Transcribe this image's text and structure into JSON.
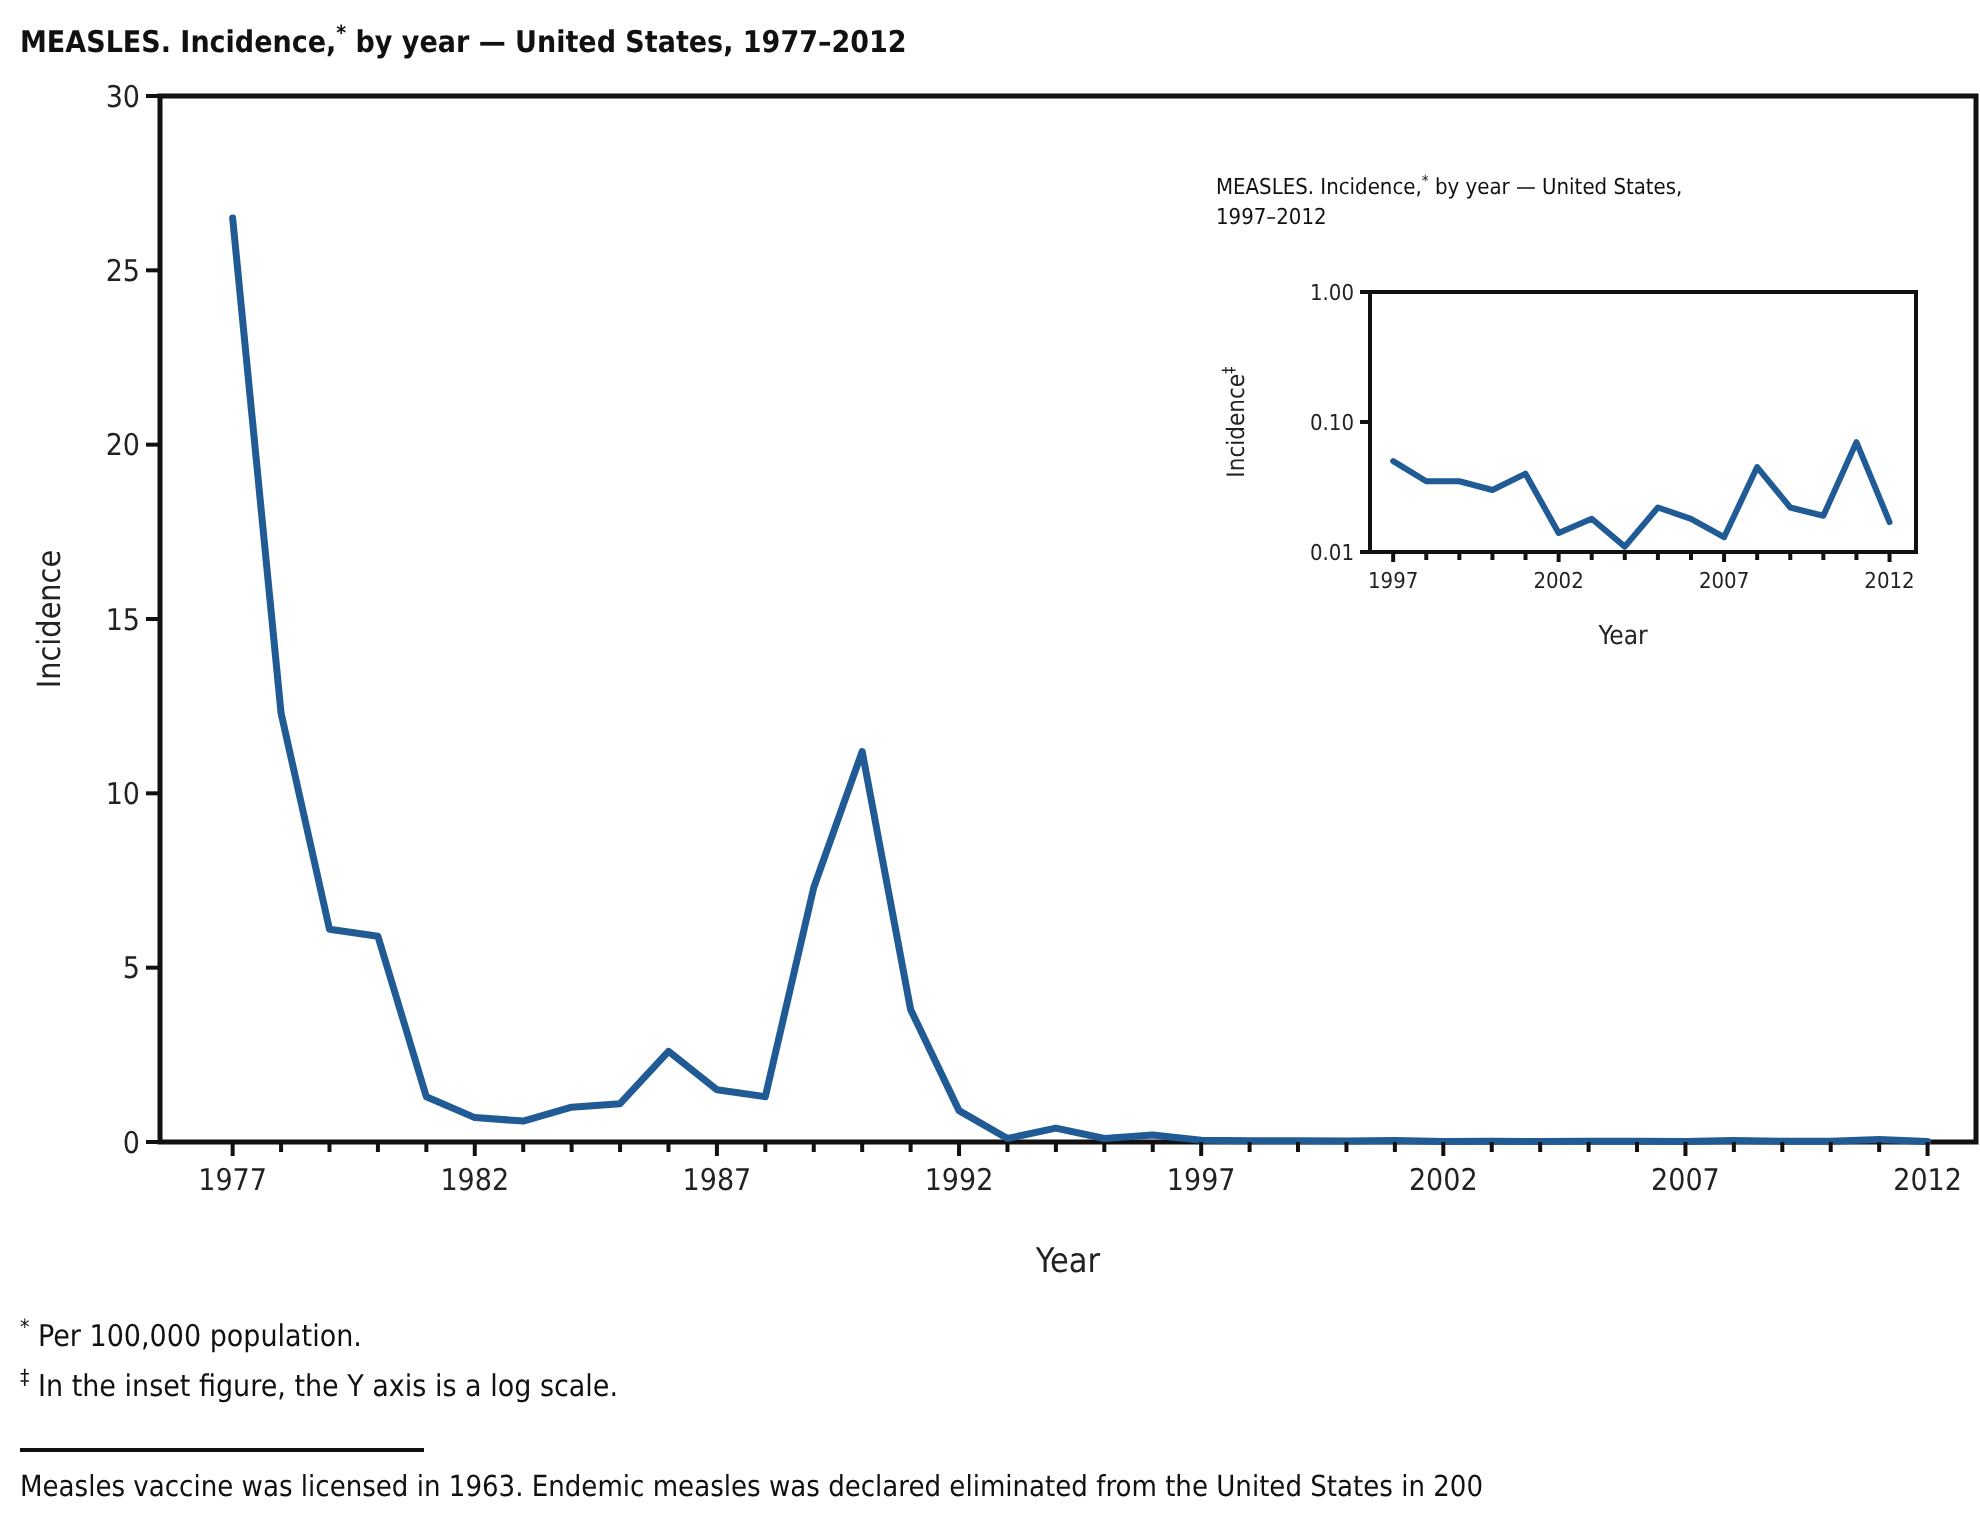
{
  "chart_data": [
    {
      "type": "line",
      "title": "MEASLES. Incidence,$^{*}$ by year — United States, 1977–2012",
      "xlabel": "Year",
      "ylabel": "Incidence",
      "x": [
        1977,
        1978,
        1979,
        1980,
        1981,
        1982,
        1983,
        1984,
        1985,
        1986,
        1987,
        1988,
        1989,
        1990,
        1991,
        1992,
        1993,
        1994,
        1995,
        1996,
        1997,
        1998,
        1999,
        2000,
        2001,
        2002,
        2003,
        2004,
        2005,
        2006,
        2007,
        2008,
        2009,
        2010,
        2011,
        2012
      ],
      "series": [
        {
          "color": "#215b95",
          "values": [
            26.5,
            12.3,
            6.1,
            5.9,
            1.3,
            0.7,
            0.6,
            1.0,
            1.1,
            2.6,
            1.5,
            1.3,
            7.3,
            11.2,
            3.8,
            0.9,
            0.1,
            0.4,
            0.1,
            0.2,
            0.05,
            0.035,
            0.035,
            0.03,
            0.04,
            0.014,
            0.018,
            0.011,
            0.022,
            0.018,
            0.013,
            0.045,
            0.022,
            0.019,
            0.07,
            0.017
          ]
        }
      ],
      "xlim": [
        1975.5,
        2013
      ],
      "ylim": [
        0,
        30
      ],
      "xticks": [
        1977,
        {
          "value": 1978,
          "label": null
        },
        {
          "value": 1979,
          "label": null
        },
        {
          "value": 1980,
          "label": null
        },
        {
          "value": 1981,
          "label": null
        },
        1982,
        {
          "value": 1983,
          "label": null
        },
        {
          "value": 1984,
          "label": null
        },
        {
          "value": 1985,
          "label": null
        },
        {
          "value": 1986,
          "label": null
        },
        1987,
        {
          "value": 1988,
          "label": null
        },
        {
          "value": 1989,
          "label": null
        },
        {
          "value": 1990,
          "label": null
        },
        {
          "value": 1991,
          "label": null
        },
        1992,
        {
          "value": 1993,
          "label": null
        },
        {
          "value": 1994,
          "label": null
        },
        {
          "value": 1995,
          "label": null
        },
        {
          "value": 1996,
          "label": null
        },
        1997,
        {
          "value": 1998,
          "label": null
        },
        {
          "value": 1999,
          "label": null
        },
        {
          "value": 2000,
          "label": null
        },
        {
          "value": 2001,
          "label": null
        },
        2002,
        {
          "value": 2003,
          "label": null
        },
        {
          "value": 2004,
          "label": null
        },
        {
          "value": 2005,
          "label": null
        },
        {
          "value": 2006,
          "label": null
        },
        2007,
        {
          "value": 2008,
          "label": null
        },
        {
          "value": 2009,
          "label": null
        },
        {
          "value": 2010,
          "label": null
        },
        {
          "value": 2011,
          "label": null
        },
        2012
      ],
      "yticks": [
        0,
        5,
        10,
        15,
        20,
        25,
        30
      ],
      "annotations": [
        "$^{*}$ Per 100,000 population.",
        "$^{‡}$ In the inset figure, the Y axis is a log scale.",
        "Measles vaccine was licensed in 1963. Endemic measles was declared eliminated from the United States in 200"
      ]
    },
    {
      "type": "line",
      "title": "MEASLES. Incidence,$^{*}$ by year — United States, 1997–2012",
      "xlabel": "Year",
      "ylabel": "Incidence$^{‡}$",
      "log": true,
      "x": [
        1997,
        1998,
        1999,
        2000,
        2001,
        2002,
        2003,
        2004,
        2005,
        2006,
        2007,
        2008,
        2009,
        2010,
        2011,
        2012
      ],
      "series": [
        {
          "color": "#215b95",
          "values": [
            0.05,
            0.035,
            0.035,
            0.03,
            0.04,
            0.014,
            0.018,
            0.011,
            0.022,
            0.018,
            0.013,
            0.045,
            0.022,
            0.019,
            0.07,
            0.017
          ]
        }
      ],
      "xlim": [
        1996.3,
        2012.8
      ],
      "ylim": [
        0.01,
        1
      ],
      "xticks": [
        1997,
        {
          "value": 1998,
          "label": null
        },
        {
          "value": 1999,
          "label": null
        },
        {
          "value": 2000,
          "label": null
        },
        {
          "value": 2001,
          "label": null
        },
        2002,
        {
          "value": 2003,
          "label": null
        },
        {
          "value": 2004,
          "label": null
        },
        {
          "value": 2005,
          "label": null
        },
        {
          "value": 2006,
          "label": null
        },
        2007,
        {
          "value": 2008,
          "label": null
        },
        {
          "value": 2009,
          "label": null
        },
        {
          "value": 2010,
          "label": null
        },
        {
          "value": 2011,
          "label": null
        },
        2012
      ],
      "yticks": [
        {
          "value": 0.01,
          "label": "0.01"
        },
        {
          "value": 0.1,
          "label": "0.10"
        },
        {
          "value": 1,
          "label": "1.00"
        }
      ]
    }
  ]
}
